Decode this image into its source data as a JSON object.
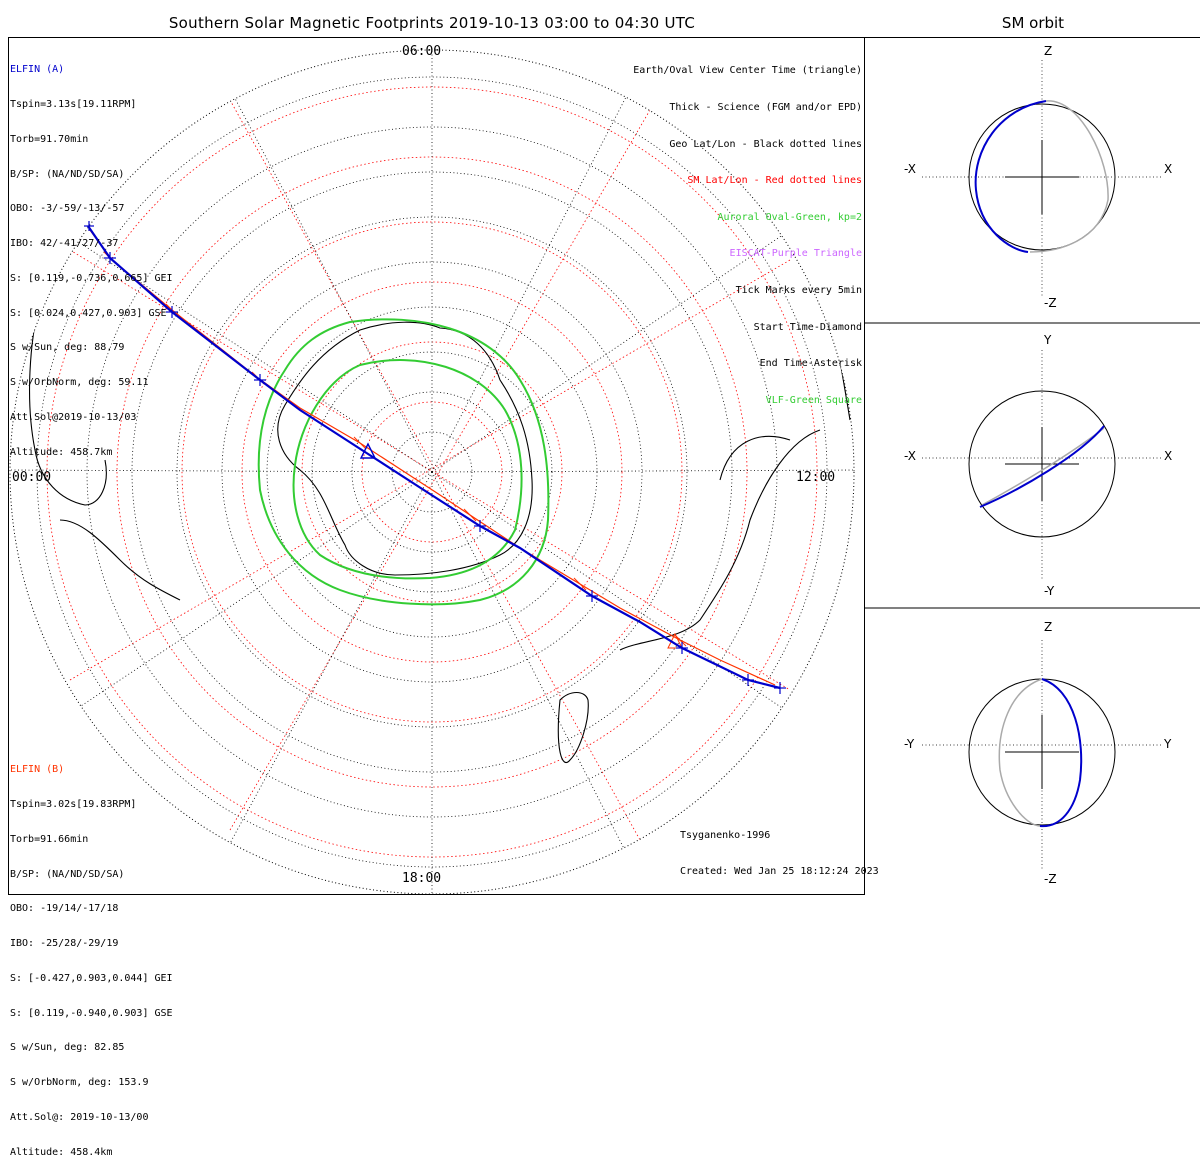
{
  "title": "Southern Solar Magnetic Footprints 2019-10-13 03:00 to 04:30 UTC",
  "orbit_title": "SM orbit",
  "hours": {
    "top": "06:00",
    "left": "00:00",
    "right": "12:00",
    "bottom": "18:00"
  },
  "elfin_a": {
    "name": "ELFIN (A)",
    "color": "#0000cc",
    "lines": [
      "Tspin=3.13s[19.11RPM]",
      "Torb=91.70min",
      "B/SP: (NA/ND/SD/SA)",
      "OBO: -3/-59/-13/-57",
      "IBO: 42/-41/27/-37",
      "S: [0.119,-0.736,0.665] GEI",
      "S: [0.024,0.427,0.903] GSE",
      "S w/Sun, deg: 88.79",
      "S w/OrbNorm, deg: 59.11",
      "Att.Sol@2019-10-13/03",
      "Altitude: 458.7km"
    ]
  },
  "elfin_b": {
    "name": "ELFIN (B)",
    "color": "#ff3300",
    "lines": [
      "Tspin=3.02s[19.83RPM]",
      "Torb=91.66min",
      "B/SP: (NA/ND/SD/SA)",
      "OBO: -19/14/-17/18",
      "IBO: -25/28/-29/19",
      "S: [-0.427,0.903,0.044] GEI",
      "S: [0.119,-0.940,0.903] GSE",
      "S w/Sun, deg: 82.85",
      "S w/OrbNorm, deg: 153.9",
      "Att.Sol@: 2019-10-13/00",
      "Altitude: 458.4km"
    ]
  },
  "legend": [
    {
      "text": "Earth/Oval View Center Time (triangle)",
      "color": "#000000"
    },
    {
      "text": "Thick - Science (FGM and/or EPD)",
      "color": "#000000"
    },
    {
      "text": "Geo Lat/Lon - Black dotted lines",
      "color": "#000000"
    },
    {
      "text": "SM Lat/Lon - Red dotted lines",
      "color": "#ff0000"
    },
    {
      "text": "Auroral Oval-Green, kp=2",
      "color": "#33cc33"
    },
    {
      "text": "EISCAT-Purple Triangle",
      "color": "#cc66ff"
    },
    {
      "text": "Tick Marks every 5min",
      "color": "#000000"
    },
    {
      "text": "Start Time-Diamond",
      "color": "#000000"
    },
    {
      "text": "End Time-Asterisk",
      "color": "#000000"
    },
    {
      "text": "VLF-Green Square",
      "color": "#33cc33"
    }
  ],
  "footer": {
    "model": "Tsyganenko-1996",
    "created": "Created: Wed Jan 25 18:12:24 2023"
  },
  "orbit_panels": [
    {
      "up": "Z",
      "down": "-Z",
      "left": "-X",
      "right": "X"
    },
    {
      "up": "Y",
      "down": "-Y",
      "left": "-X",
      "right": "X"
    },
    {
      "up": "Z",
      "down": "-Z",
      "left": "-Y",
      "right": "Y"
    }
  ]
}
